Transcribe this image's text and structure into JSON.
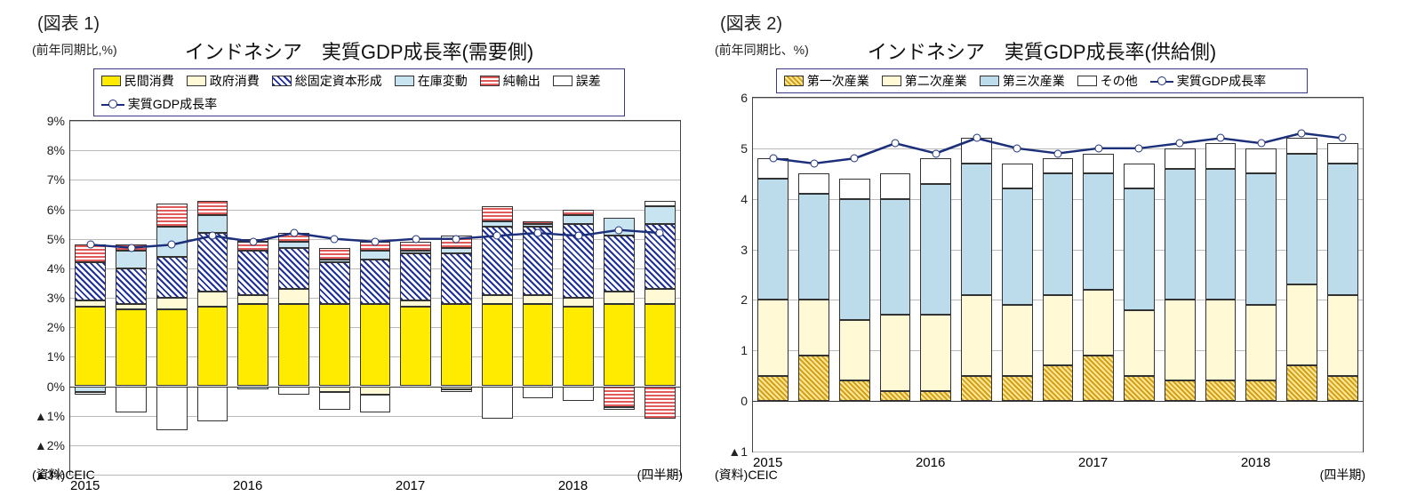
{
  "chart1": {
    "fig_label": "(図表 1)",
    "y_unit": "(前年同期比,%)",
    "title": "インドネシア　実質GDP成長率(需要側)",
    "legend": [
      "民間消費",
      "政府消費",
      "総固定資本形成",
      "在庫変動",
      "純輸出",
      "誤差",
      "実質GDP成長率"
    ],
    "legend_patterns": [
      "p-yellow",
      "p-cream",
      "p-diag",
      "p-lblue",
      "p-red",
      "p-white",
      "line"
    ],
    "ymin": -3,
    "ymax": 9,
    "ytick_step": 1,
    "neg_prefix": "▲",
    "x_years": [
      "2015",
      "",
      "",
      "",
      "2016",
      "",
      "",
      "",
      "2017",
      "",
      "",
      "",
      "2018",
      "",
      ""
    ],
    "periods": 15,
    "series": {
      "pc": [
        2.7,
        2.6,
        2.6,
        2.7,
        2.8,
        2.8,
        2.8,
        2.8,
        2.7,
        2.8,
        2.8,
        2.8,
        2.7,
        2.8,
        2.8
      ],
      "gc": [
        0.2,
        0.2,
        0.4,
        0.5,
        0.3,
        0.5,
        -0.2,
        -0.3,
        0.2,
        -0.1,
        0.3,
        0.3,
        0.3,
        0.4,
        0.5
      ],
      "gfcf": [
        1.3,
        1.2,
        1.4,
        2.0,
        1.5,
        1.4,
        1.4,
        1.5,
        1.6,
        1.7,
        2.3,
        2.3,
        2.5,
        1.9,
        2.2
      ],
      "inv": [
        -0.2,
        0.6,
        1.0,
        0.6,
        -0.1,
        0.2,
        0.1,
        0.3,
        0.1,
        0.2,
        0.2,
        0.1,
        0.3,
        0.6,
        0.6
      ],
      "nx": [
        0.6,
        0.2,
        0.8,
        0.5,
        0.3,
        0.3,
        0.4,
        0.3,
        0.3,
        0.4,
        0.5,
        0.1,
        0.2,
        -0.7,
        -1.1
      ],
      "err": [
        -0.1,
        -0.9,
        -1.5,
        -1.2,
        0.1,
        -0.3,
        -0.6,
        -0.6,
        0.0,
        -0.1,
        -1.1,
        -0.4,
        -0.5,
        -0.1,
        0.2
      ]
    },
    "gdp_line": [
      4.8,
      4.7,
      4.8,
      5.1,
      4.9,
      5.2,
      5.0,
      4.9,
      5.0,
      5.0,
      5.1,
      5.2,
      5.1,
      5.3,
      5.2
    ],
    "source": "(資料)CEIC",
    "x_unit": "(四半期)",
    "colors": {
      "grid": "#bbbbbb",
      "axis": "#444444",
      "line": "#1c2f7a"
    }
  },
  "chart2": {
    "fig_label": "(図表 2)",
    "y_unit": "(前年同期比、%)",
    "title": "インドネシア　実質GDP成長率(供給側)",
    "legend": [
      "第一次産業",
      "第二次産業",
      "第三次産業",
      "その他",
      "実質GDP成長率"
    ],
    "legend_patterns": [
      "p-gold",
      "p-cream",
      "p-plainlblue",
      "p-white",
      "line"
    ],
    "ymin": -1,
    "ymax": 6,
    "ytick_step": 1,
    "neg_prefix": "▲",
    "x_years": [
      "2015",
      "",
      "",
      "",
      "2016",
      "",
      "",
      "",
      "2017",
      "",
      "",
      "",
      "2018",
      "",
      ""
    ],
    "periods": 15,
    "series": {
      "s1": [
        0.5,
        0.9,
        0.4,
        0.2,
        0.2,
        0.5,
        0.5,
        0.7,
        0.9,
        0.5,
        0.4,
        0.4,
        0.4,
        0.7,
        0.5
      ],
      "s2": [
        1.5,
        1.1,
        1.2,
        1.5,
        1.5,
        1.6,
        1.4,
        1.4,
        1.3,
        1.3,
        1.6,
        1.6,
        1.5,
        1.6,
        1.6
      ],
      "s3": [
        2.4,
        2.1,
        2.4,
        2.3,
        2.6,
        2.6,
        2.3,
        2.4,
        2.3,
        2.4,
        2.6,
        2.6,
        2.6,
        2.6,
        2.6
      ],
      "ot": [
        0.4,
        0.4,
        0.4,
        0.5,
        0.5,
        0.5,
        0.5,
        0.3,
        0.4,
        0.5,
        0.4,
        0.5,
        0.5,
        0.3,
        0.4
      ]
    },
    "gdp_line": [
      4.8,
      4.7,
      4.8,
      5.1,
      4.9,
      5.2,
      5.0,
      4.9,
      5.0,
      5.0,
      5.1,
      5.2,
      5.1,
      5.3,
      5.2
    ],
    "source": "(資料)CEIC",
    "x_unit": "(四半期)"
  }
}
